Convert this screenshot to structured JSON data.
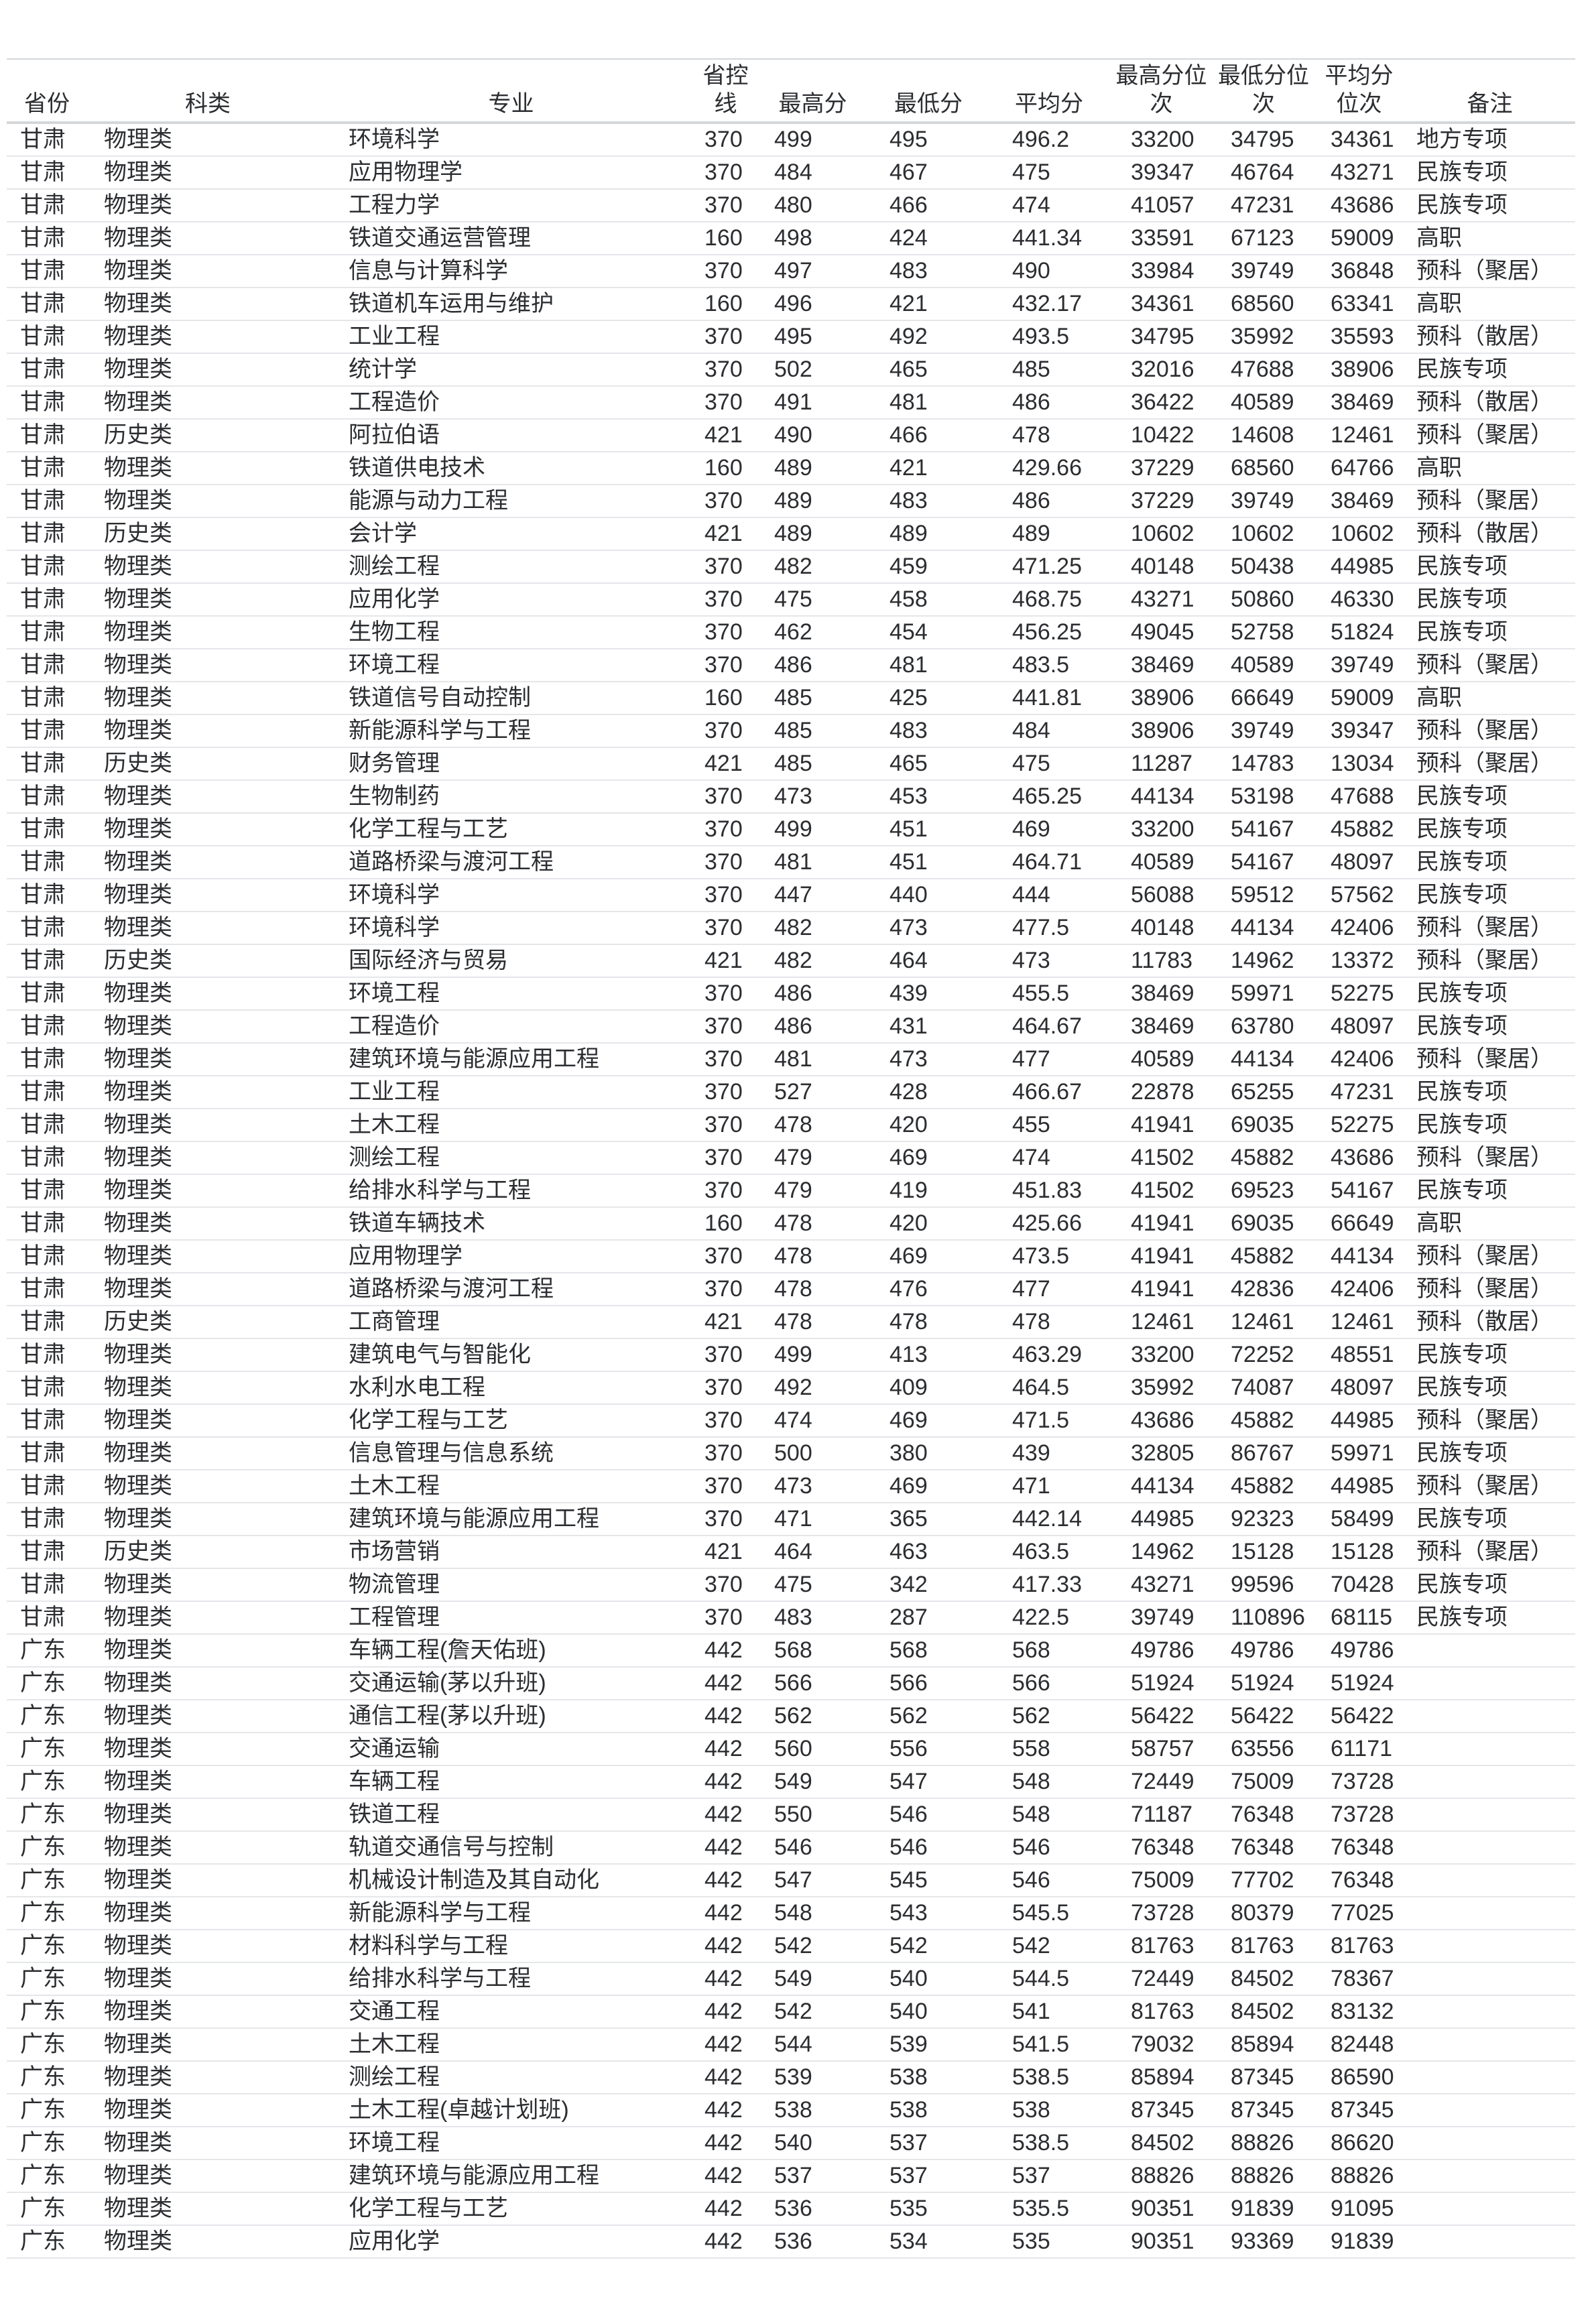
{
  "page": {
    "background": "#ffffff",
    "text_color": "#2b2d30",
    "header_border_color": "#d4d7da",
    "row_border_color": "#e4e6e9"
  },
  "table": {
    "columns": [
      "省份",
      "科类",
      "专业",
      "省控线",
      "最高分",
      "最低分",
      "平均分",
      "最高分位次",
      "最低分位次",
      "平均分位次",
      "备注"
    ],
    "column_keys": [
      "province",
      "category",
      "major",
      "control-line",
      "max-score",
      "min-score",
      "avg-score",
      "max-score-rank",
      "min-score-rank",
      "avg-score-rank",
      "remark"
    ],
    "rows": [
      [
        "甘肃",
        "物理类",
        "环境科学",
        "370",
        "499",
        "495",
        "496.2",
        "33200",
        "34795",
        "34361",
        "地方专项"
      ],
      [
        "甘肃",
        "物理类",
        "应用物理学",
        "370",
        "484",
        "467",
        "475",
        "39347",
        "46764",
        "43271",
        "民族专项"
      ],
      [
        "甘肃",
        "物理类",
        "工程力学",
        "370",
        "480",
        "466",
        "474",
        "41057",
        "47231",
        "43686",
        "民族专项"
      ],
      [
        "甘肃",
        "物理类",
        "铁道交通运营管理",
        "160",
        "498",
        "424",
        "441.34",
        "33591",
        "67123",
        "59009",
        "高职"
      ],
      [
        "甘肃",
        "物理类",
        "信息与计算科学",
        "370",
        "497",
        "483",
        "490",
        "33984",
        "39749",
        "36848",
        "预科（聚居）"
      ],
      [
        "甘肃",
        "物理类",
        "铁道机车运用与维护",
        "160",
        "496",
        "421",
        "432.17",
        "34361",
        "68560",
        "63341",
        "高职"
      ],
      [
        "甘肃",
        "物理类",
        "工业工程",
        "370",
        "495",
        "492",
        "493.5",
        "34795",
        "35992",
        "35593",
        "预科（散居）"
      ],
      [
        "甘肃",
        "物理类",
        "统计学",
        "370",
        "502",
        "465",
        "485",
        "32016",
        "47688",
        "38906",
        "民族专项"
      ],
      [
        "甘肃",
        "物理类",
        "工程造价",
        "370",
        "491",
        "481",
        "486",
        "36422",
        "40589",
        "38469",
        "预科（散居）"
      ],
      [
        "甘肃",
        "历史类",
        "阿拉伯语",
        "421",
        "490",
        "466",
        "478",
        "10422",
        "14608",
        "12461",
        "预科（聚居）"
      ],
      [
        "甘肃",
        "物理类",
        "铁道供电技术",
        "160",
        "489",
        "421",
        "429.66",
        "37229",
        "68560",
        "64766",
        "高职"
      ],
      [
        "甘肃",
        "物理类",
        "能源与动力工程",
        "370",
        "489",
        "483",
        "486",
        "37229",
        "39749",
        "38469",
        "预科（聚居）"
      ],
      [
        "甘肃",
        "历史类",
        "会计学",
        "421",
        "489",
        "489",
        "489",
        "10602",
        "10602",
        "10602",
        "预科（散居）"
      ],
      [
        "甘肃",
        "物理类",
        "测绘工程",
        "370",
        "482",
        "459",
        "471.25",
        "40148",
        "50438",
        "44985",
        "民族专项"
      ],
      [
        "甘肃",
        "物理类",
        "应用化学",
        "370",
        "475",
        "458",
        "468.75",
        "43271",
        "50860",
        "46330",
        "民族专项"
      ],
      [
        "甘肃",
        "物理类",
        "生物工程",
        "370",
        "462",
        "454",
        "456.25",
        "49045",
        "52758",
        "51824",
        "民族专项"
      ],
      [
        "甘肃",
        "物理类",
        "环境工程",
        "370",
        "486",
        "481",
        "483.5",
        "38469",
        "40589",
        "39749",
        "预科（聚居）"
      ],
      [
        "甘肃",
        "物理类",
        "铁道信号自动控制",
        "160",
        "485",
        "425",
        "441.81",
        "38906",
        "66649",
        "59009",
        "高职"
      ],
      [
        "甘肃",
        "物理类",
        "新能源科学与工程",
        "370",
        "485",
        "483",
        "484",
        "38906",
        "39749",
        "39347",
        "预科（聚居）"
      ],
      [
        "甘肃",
        "历史类",
        "财务管理",
        "421",
        "485",
        "465",
        "475",
        "11287",
        "14783",
        "13034",
        "预科（聚居）"
      ],
      [
        "甘肃",
        "物理类",
        "生物制药",
        "370",
        "473",
        "453",
        "465.25",
        "44134",
        "53198",
        "47688",
        "民族专项"
      ],
      [
        "甘肃",
        "物理类",
        "化学工程与工艺",
        "370",
        "499",
        "451",
        "469",
        "33200",
        "54167",
        "45882",
        "民族专项"
      ],
      [
        "甘肃",
        "物理类",
        "道路桥梁与渡河工程",
        "370",
        "481",
        "451",
        "464.71",
        "40589",
        "54167",
        "48097",
        "民族专项"
      ],
      [
        "甘肃",
        "物理类",
        "环境科学",
        "370",
        "447",
        "440",
        "444",
        "56088",
        "59512",
        "57562",
        "民族专项"
      ],
      [
        "甘肃",
        "物理类",
        "环境科学",
        "370",
        "482",
        "473",
        "477.5",
        "40148",
        "44134",
        "42406",
        "预科（聚居）"
      ],
      [
        "甘肃",
        "历史类",
        "国际经济与贸易",
        "421",
        "482",
        "464",
        "473",
        "11783",
        "14962",
        "13372",
        "预科（聚居）"
      ],
      [
        "甘肃",
        "物理类",
        "环境工程",
        "370",
        "486",
        "439",
        "455.5",
        "38469",
        "59971",
        "52275",
        "民族专项"
      ],
      [
        "甘肃",
        "物理类",
        "工程造价",
        "370",
        "486",
        "431",
        "464.67",
        "38469",
        "63780",
        "48097",
        "民族专项"
      ],
      [
        "甘肃",
        "物理类",
        "建筑环境与能源应用工程",
        "370",
        "481",
        "473",
        "477",
        "40589",
        "44134",
        "42406",
        "预科（聚居）"
      ],
      [
        "甘肃",
        "物理类",
        "工业工程",
        "370",
        "527",
        "428",
        "466.67",
        "22878",
        "65255",
        "47231",
        "民族专项"
      ],
      [
        "甘肃",
        "物理类",
        "土木工程",
        "370",
        "478",
        "420",
        "455",
        "41941",
        "69035",
        "52275",
        "民族专项"
      ],
      [
        "甘肃",
        "物理类",
        "测绘工程",
        "370",
        "479",
        "469",
        "474",
        "41502",
        "45882",
        "43686",
        "预科（聚居）"
      ],
      [
        "甘肃",
        "物理类",
        "给排水科学与工程",
        "370",
        "479",
        "419",
        "451.83",
        "41502",
        "69523",
        "54167",
        "民族专项"
      ],
      [
        "甘肃",
        "物理类",
        "铁道车辆技术",
        "160",
        "478",
        "420",
        "425.66",
        "41941",
        "69035",
        "66649",
        "高职"
      ],
      [
        "甘肃",
        "物理类",
        "应用物理学",
        "370",
        "478",
        "469",
        "473.5",
        "41941",
        "45882",
        "44134",
        "预科（聚居）"
      ],
      [
        "甘肃",
        "物理类",
        "道路桥梁与渡河工程",
        "370",
        "478",
        "476",
        "477",
        "41941",
        "42836",
        "42406",
        "预科（聚居）"
      ],
      [
        "甘肃",
        "历史类",
        "工商管理",
        "421",
        "478",
        "478",
        "478",
        "12461",
        "12461",
        "12461",
        "预科（散居）"
      ],
      [
        "甘肃",
        "物理类",
        "建筑电气与智能化",
        "370",
        "499",
        "413",
        "463.29",
        "33200",
        "72252",
        "48551",
        "民族专项"
      ],
      [
        "甘肃",
        "物理类",
        "水利水电工程",
        "370",
        "492",
        "409",
        "464.5",
        "35992",
        "74087",
        "48097",
        "民族专项"
      ],
      [
        "甘肃",
        "物理类",
        "化学工程与工艺",
        "370",
        "474",
        "469",
        "471.5",
        "43686",
        "45882",
        "44985",
        "预科（聚居）"
      ],
      [
        "甘肃",
        "物理类",
        "信息管理与信息系统",
        "370",
        "500",
        "380",
        "439",
        "32805",
        "86767",
        "59971",
        "民族专项"
      ],
      [
        "甘肃",
        "物理类",
        "土木工程",
        "370",
        "473",
        "469",
        "471",
        "44134",
        "45882",
        "44985",
        "预科（聚居）"
      ],
      [
        "甘肃",
        "物理类",
        "建筑环境与能源应用工程",
        "370",
        "471",
        "365",
        "442.14",
        "44985",
        "92323",
        "58499",
        "民族专项"
      ],
      [
        "甘肃",
        "历史类",
        "市场营销",
        "421",
        "464",
        "463",
        "463.5",
        "14962",
        "15128",
        "15128",
        "预科（聚居）"
      ],
      [
        "甘肃",
        "物理类",
        "物流管理",
        "370",
        "475",
        "342",
        "417.33",
        "43271",
        "99596",
        "70428",
        "民族专项"
      ],
      [
        "甘肃",
        "物理类",
        "工程管理",
        "370",
        "483",
        "287",
        "422.5",
        "39749",
        "110896",
        "68115",
        "民族专项"
      ],
      [
        "广东",
        "物理类",
        "车辆工程(詹天佑班)",
        "442",
        "568",
        "568",
        "568",
        "49786",
        "49786",
        "49786",
        ""
      ],
      [
        "广东",
        "物理类",
        "交通运输(茅以升班)",
        "442",
        "566",
        "566",
        "566",
        "51924",
        "51924",
        "51924",
        ""
      ],
      [
        "广东",
        "物理类",
        "通信工程(茅以升班)",
        "442",
        "562",
        "562",
        "562",
        "56422",
        "56422",
        "56422",
        ""
      ],
      [
        "广东",
        "物理类",
        "交通运输",
        "442",
        "560",
        "556",
        "558",
        "58757",
        "63556",
        "61171",
        ""
      ],
      [
        "广东",
        "物理类",
        "车辆工程",
        "442",
        "549",
        "547",
        "548",
        "72449",
        "75009",
        "73728",
        ""
      ],
      [
        "广东",
        "物理类",
        "铁道工程",
        "442",
        "550",
        "546",
        "548",
        "71187",
        "76348",
        "73728",
        ""
      ],
      [
        "广东",
        "物理类",
        "轨道交通信号与控制",
        "442",
        "546",
        "546",
        "546",
        "76348",
        "76348",
        "76348",
        ""
      ],
      [
        "广东",
        "物理类",
        "机械设计制造及其自动化",
        "442",
        "547",
        "545",
        "546",
        "75009",
        "77702",
        "76348",
        ""
      ],
      [
        "广东",
        "物理类",
        "新能源科学与工程",
        "442",
        "548",
        "543",
        "545.5",
        "73728",
        "80379",
        "77025",
        ""
      ],
      [
        "广东",
        "物理类",
        "材料科学与工程",
        "442",
        "542",
        "542",
        "542",
        "81763",
        "81763",
        "81763",
        ""
      ],
      [
        "广东",
        "物理类",
        "给排水科学与工程",
        "442",
        "549",
        "540",
        "544.5",
        "72449",
        "84502",
        "78367",
        ""
      ],
      [
        "广东",
        "物理类",
        "交通工程",
        "442",
        "542",
        "540",
        "541",
        "81763",
        "84502",
        "83132",
        ""
      ],
      [
        "广东",
        "物理类",
        "土木工程",
        "442",
        "544",
        "539",
        "541.5",
        "79032",
        "85894",
        "82448",
        ""
      ],
      [
        "广东",
        "物理类",
        "测绘工程",
        "442",
        "539",
        "538",
        "538.5",
        "85894",
        "87345",
        "86590",
        ""
      ],
      [
        "广东",
        "物理类",
        "土木工程(卓越计划班)",
        "442",
        "538",
        "538",
        "538",
        "87345",
        "87345",
        "87345",
        ""
      ],
      [
        "广东",
        "物理类",
        "环境工程",
        "442",
        "540",
        "537",
        "538.5",
        "84502",
        "88826",
        "86620",
        ""
      ],
      [
        "广东",
        "物理类",
        "建筑环境与能源应用工程",
        "442",
        "537",
        "537",
        "537",
        "88826",
        "88826",
        "88826",
        ""
      ],
      [
        "广东",
        "物理类",
        "化学工程与工艺",
        "442",
        "536",
        "535",
        "535.5",
        "90351",
        "91839",
        "91095",
        ""
      ],
      [
        "广东",
        "物理类",
        "应用化学",
        "442",
        "536",
        "534",
        "535",
        "90351",
        "93369",
        "91839",
        ""
      ]
    ]
  }
}
